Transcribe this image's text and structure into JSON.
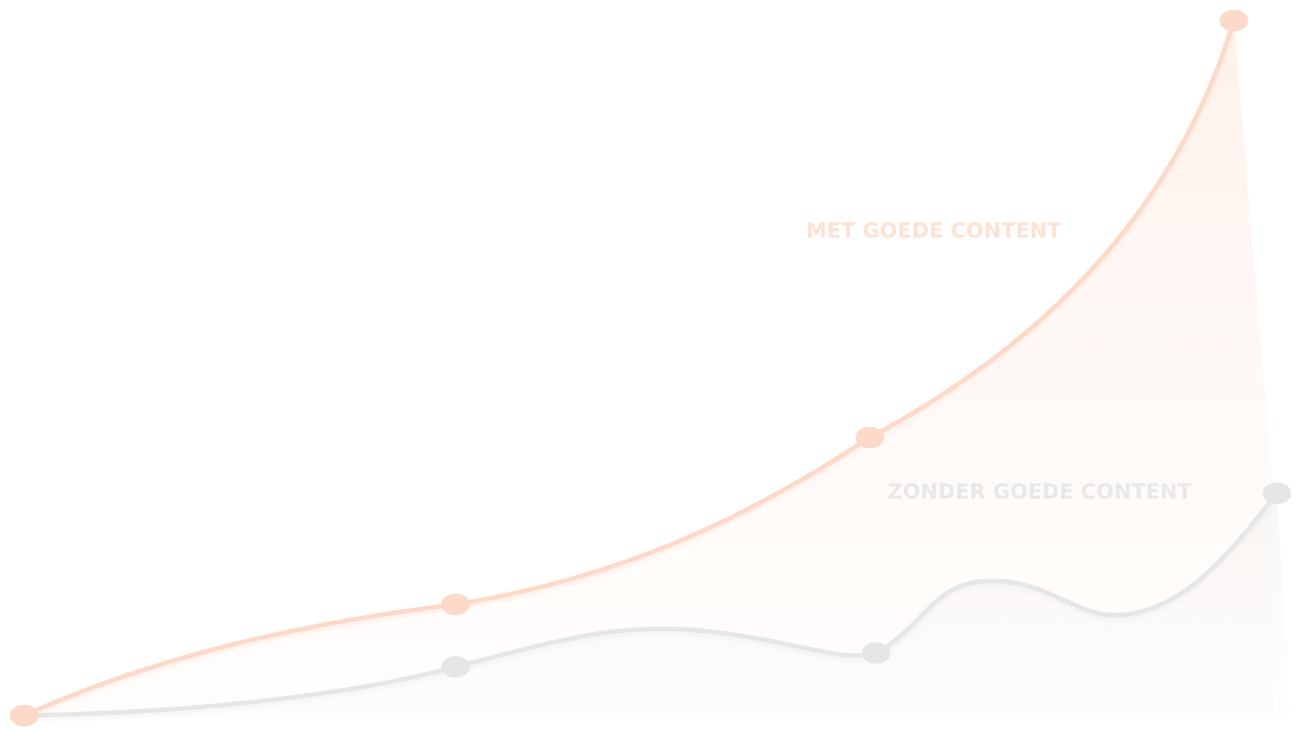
{
  "chart_data": {
    "type": "line",
    "title": "",
    "xlabel": "",
    "ylabel": "",
    "grid": false,
    "legend": "none",
    "x": [
      0,
      1,
      2,
      3
    ],
    "series": [
      {
        "name": "MET GOEDE CONTENT",
        "values": [
          0,
          16,
          40,
          100
        ],
        "color": "#fcd9c8",
        "fill_color": "#fff1ea"
      },
      {
        "name": "ZONDER GOEDE CONTENT",
        "values": [
          0,
          7,
          9,
          32
        ],
        "color": "#e6e6e6",
        "fill_color": "#f5f5f5"
      }
    ],
    "ylim": [
      0,
      100
    ]
  }
}
